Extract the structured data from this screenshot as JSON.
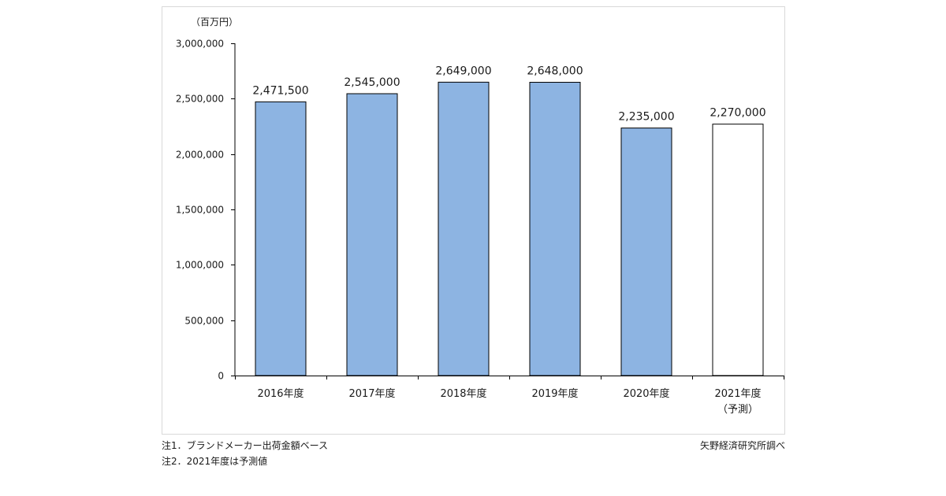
{
  "chart_data": {
    "type": "bar",
    "unit_label": "（百万円）",
    "categories": [
      [
        "2016年度"
      ],
      [
        "2017年度"
      ],
      [
        "2018年度"
      ],
      [
        "2019年度"
      ],
      [
        "2020年度"
      ],
      [
        "2021年度",
        "（予測）"
      ]
    ],
    "values": [
      2471500,
      2545000,
      2649000,
      2648000,
      2235000,
      2270000
    ],
    "data_labels": [
      "2,471,500",
      "2,545,000",
      "2,649,000",
      "2,648,000",
      "2,235,000",
      "2,270,000"
    ],
    "forecast": [
      false,
      false,
      false,
      false,
      false,
      true
    ],
    "ylim": [
      0,
      3000000
    ],
    "yticks": [
      0,
      500000,
      1000000,
      1500000,
      2000000,
      2500000,
      3000000
    ],
    "ytick_labels": [
      "0",
      "500,000",
      "1,000,000",
      "1,500,000",
      "2,000,000",
      "2,500,000",
      "3,000,000"
    ],
    "grid": false,
    "colors": {
      "actual": "#8db4e2",
      "forecast": "#ffffff",
      "edge": "#000000"
    }
  },
  "notes": {
    "note1": "注1．ブランドメーカー出荷金額ベース",
    "note2": "注2．2021年度は予測値"
  },
  "source": "矢野経済研究所調べ"
}
